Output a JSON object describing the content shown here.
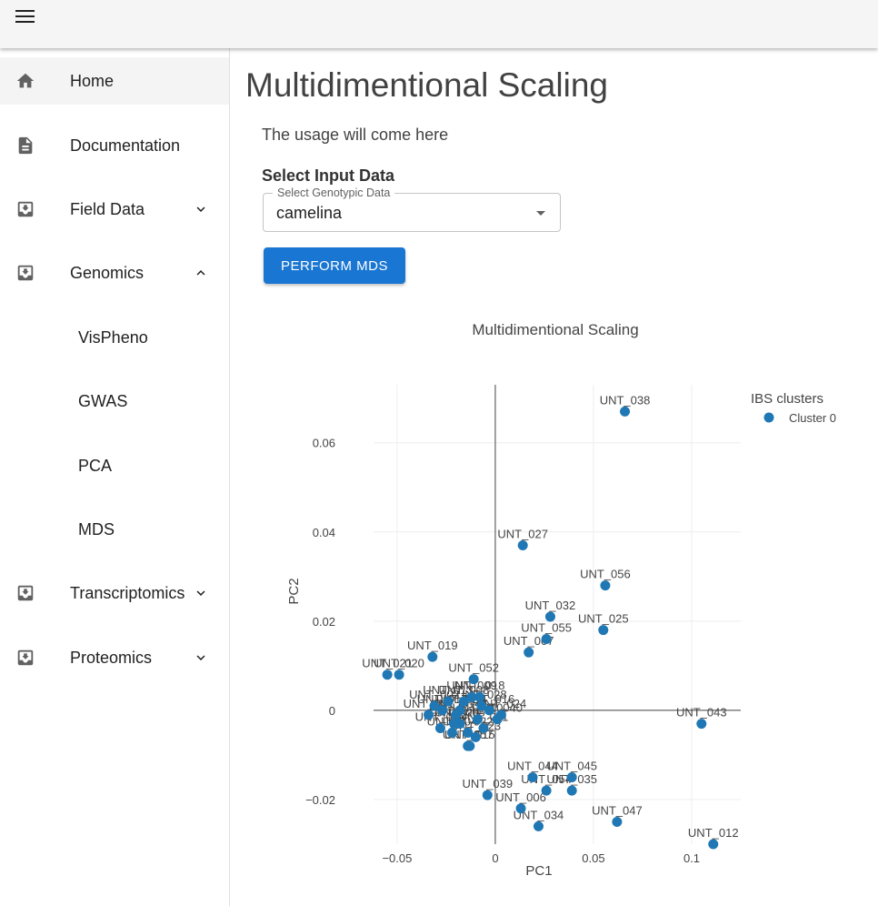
{
  "header": {
    "menu_icon": "hamburger-menu-icon"
  },
  "sidebar": {
    "items": [
      {
        "label": "Home",
        "icon": "home-icon",
        "active": true
      },
      {
        "label": "Documentation",
        "icon": "document-icon"
      },
      {
        "label": "Field Data",
        "icon": "inbox-download-icon",
        "expand": "chevron-down-icon"
      },
      {
        "label": "Genomics",
        "icon": "inbox-download-icon",
        "expand": "chevron-up-icon"
      },
      {
        "label": "VisPheno"
      },
      {
        "label": "GWAS"
      },
      {
        "label": "PCA"
      },
      {
        "label": "MDS"
      },
      {
        "label": "Transcriptomics",
        "icon": "inbox-download-icon",
        "expand": "chevron-down-icon"
      },
      {
        "label": "Proteomics",
        "icon": "inbox-download-icon",
        "expand": "chevron-down-icon"
      }
    ]
  },
  "main": {
    "title": "Multidimentional Scaling",
    "usage_text": "The usage will come here",
    "input_heading": "Select Input Data",
    "select": {
      "label": "Select Genotypic Data",
      "value": "camelina"
    },
    "perform_button": "PERFORM MDS"
  },
  "colors": {
    "accent": "#1976d2",
    "marker": "#1f77b4"
  },
  "chart_data": {
    "type": "scatter",
    "title": "Multidimentional Scaling",
    "xlabel": "PC1",
    "ylabel": "PC2",
    "xlim": [
      -0.062,
      0.125
    ],
    "ylim": [
      -0.03,
      0.073
    ],
    "xticks": [
      {
        "value": -0.05,
        "label": "−0.05"
      },
      {
        "value": 0,
        "label": "0"
      },
      {
        "value": 0.05,
        "label": "0.05"
      },
      {
        "value": 0.1,
        "label": "0.1"
      }
    ],
    "yticks": [
      {
        "value": -0.02,
        "label": "−0.02"
      },
      {
        "value": 0,
        "label": "0"
      },
      {
        "value": 0.02,
        "label": "0.02"
      },
      {
        "value": 0.04,
        "label": "0.04"
      },
      {
        "value": 0.06,
        "label": "0.06"
      }
    ],
    "grid": true,
    "legend": {
      "title": "IBS clusters",
      "placement": "top-right"
    },
    "series": [
      {
        "name": "Cluster 0",
        "color": "#1f77b4",
        "points": [
          {
            "label": "UNT_038",
            "x": 0.066,
            "y": 0.067
          },
          {
            "label": "UNT_027",
            "x": 0.014,
            "y": 0.037
          },
          {
            "label": "UNT_056",
            "x": 0.056,
            "y": 0.028
          },
          {
            "label": "UNT_032",
            "x": 0.028,
            "y": 0.021
          },
          {
            "label": "UNT_025",
            "x": 0.055,
            "y": 0.018
          },
          {
            "label": "UNT_055",
            "x": 0.026,
            "y": 0.016
          },
          {
            "label": "UNT_007",
            "x": 0.017,
            "y": 0.013
          },
          {
            "label": "UNT_019",
            "x": -0.032,
            "y": 0.012
          },
          {
            "label": "UNT_021",
            "x": -0.055,
            "y": 0.008
          },
          {
            "label": "UNT_020",
            "x": -0.049,
            "y": 0.008
          },
          {
            "label": "UNT_052",
            "x": -0.011,
            "y": 0.007
          },
          {
            "label": "UNT_018",
            "x": -0.008,
            "y": 0.003
          },
          {
            "label": "UNT_043",
            "x": 0.105,
            "y": -0.003
          },
          {
            "label": "UNT_045",
            "x": 0.039,
            "y": -0.015
          },
          {
            "label": "UNT_044",
            "x": 0.019,
            "y": -0.015
          },
          {
            "label": "UNT_054",
            "x": 0.026,
            "y": -0.018
          },
          {
            "label": "UNT_035",
            "x": 0.039,
            "y": -0.018
          },
          {
            "label": "UNT_039",
            "x": -0.004,
            "y": -0.019
          },
          {
            "label": "UNT_006",
            "x": 0.013,
            "y": -0.022
          },
          {
            "label": "UNT_047",
            "x": 0.062,
            "y": -0.025
          },
          {
            "label": "UNT_034",
            "x": 0.022,
            "y": -0.026
          },
          {
            "label": "UNT_012",
            "x": 0.111,
            "y": -0.03
          },
          {
            "label": "UNT_040",
            "x": 0.001,
            "y": -0.002
          },
          {
            "label": "UNT_024",
            "x": 0.003,
            "y": -0.001
          },
          {
            "label": "UNT_015",
            "x": -0.013,
            "y": -0.008
          },
          {
            "label": "UNT_057",
            "x": -0.014,
            "y": -0.008
          },
          {
            "label": "UNT_001",
            "x": -0.034,
            "y": -0.001
          },
          {
            "label": "UNT_002",
            "x": -0.031,
            "y": 0.001
          },
          {
            "label": "UNT_003",
            "x": -0.028,
            "y": -0.004
          },
          {
            "label": "UNT_004",
            "x": -0.022,
            "y": -0.005
          },
          {
            "label": "UNT_005",
            "x": -0.018,
            "y": -0.003
          },
          {
            "label": "UNT_008",
            "x": -0.016,
            "y": 0.002
          },
          {
            "label": "UNT_009",
            "x": -0.012,
            "y": 0.003
          },
          {
            "label": "UNT_010",
            "x": -0.009,
            "y": -0.002
          },
          {
            "label": "UNT_011",
            "x": -0.006,
            "y": -0.004
          },
          {
            "label": "UNT_013",
            "x": -0.024,
            "y": 0.002
          },
          {
            "label": "UNT_014",
            "x": -0.02,
            "y": -0.001
          },
          {
            "label": "UNT_016",
            "x": -0.003,
            "y": 0.0
          },
          {
            "label": "UNT_017",
            "x": -0.027,
            "y": 0.0
          },
          {
            "label": "UNT_022",
            "x": -0.014,
            "y": -0.005
          },
          {
            "label": "UNT_023",
            "x": -0.01,
            "y": -0.006
          },
          {
            "label": "UNT_026",
            "x": -0.018,
            "y": 0.0
          },
          {
            "label": "UNT_028",
            "x": -0.007,
            "y": 0.001
          },
          {
            "label": "UNT_029",
            "x": -0.021,
            "y": -0.003
          }
        ]
      }
    ]
  }
}
